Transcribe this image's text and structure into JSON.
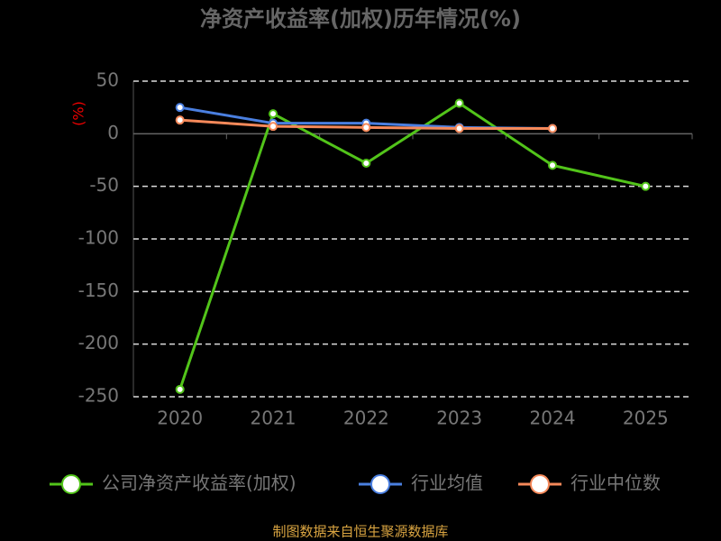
{
  "chart_data": {
    "type": "line",
    "title": "净资产收益率(加权)历年情况(%)",
    "y_label": "(%)",
    "categories": [
      "2020",
      "2021",
      "2022",
      "2023",
      "2024",
      "2025"
    ],
    "series": [
      {
        "name": "公司净资产收益率(加权)",
        "color": "#52c41a",
        "values": [
          -243,
          19,
          -28,
          29,
          -30,
          -50
        ]
      },
      {
        "name": "行业均值",
        "color": "#4a7fe0",
        "values": [
          25,
          10,
          10,
          6,
          5,
          null
        ]
      },
      {
        "name": "行业中位数",
        "color": "#f5895a",
        "values": [
          13,
          7,
          6,
          5,
          5,
          null
        ]
      }
    ],
    "ylim": [
      -250,
      50
    ],
    "yticks": [
      -250,
      -200,
      -150,
      -100,
      -50,
      0,
      50
    ],
    "grid": true,
    "source": "制图数据来自恒生聚源数据库"
  }
}
